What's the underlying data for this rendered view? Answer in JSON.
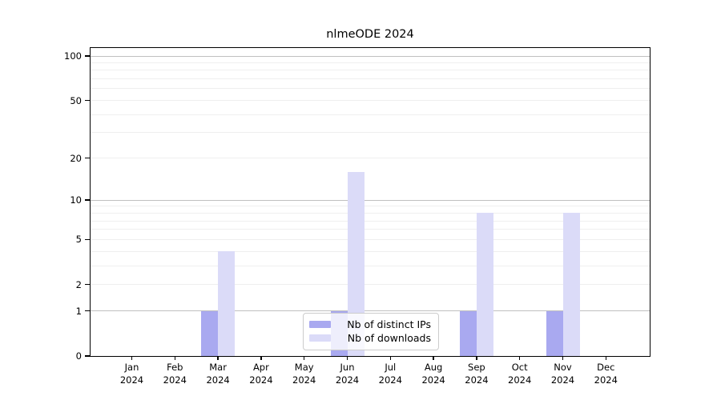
{
  "chart_data": {
    "type": "bar",
    "title": "nlmeODE 2024",
    "xlabel": "",
    "ylabel": "",
    "categories": [
      "Jan",
      "Feb",
      "Mar",
      "Apr",
      "May",
      "Jun",
      "Jul",
      "Aug",
      "Sep",
      "Oct",
      "Nov",
      "Dec"
    ],
    "x_sublabel": "2024",
    "series": [
      {
        "name": "Nb of distinct IPs",
        "color": "#a9a9f0",
        "values": [
          0,
          0,
          1,
          0,
          0,
          1,
          0,
          0,
          1,
          0,
          1,
          0
        ]
      },
      {
        "name": "Nb of downloads",
        "color": "#dbdbf8",
        "values": [
          0,
          0,
          4,
          0,
          0,
          16,
          0,
          0,
          8,
          0,
          8,
          0
        ]
      }
    ],
    "y_axis": {
      "scale": "log1p",
      "ylim": [
        0,
        100
      ],
      "ticks": [
        0,
        1,
        2,
        5,
        10,
        20,
        50,
        100
      ],
      "major_gridlines": [
        1,
        10,
        100
      ],
      "minor_gridlines": [
        2,
        3,
        4,
        5,
        6,
        7,
        8,
        9,
        20,
        30,
        40,
        50,
        60,
        70,
        80,
        90
      ]
    },
    "legend_position": "bottom-center",
    "grid": "on",
    "colors": {
      "frame": "#000000",
      "major_grid": "#c0c0c0",
      "minor_grid": "#efefef",
      "legend_border": "#cccccc",
      "text": "#000000"
    }
  }
}
